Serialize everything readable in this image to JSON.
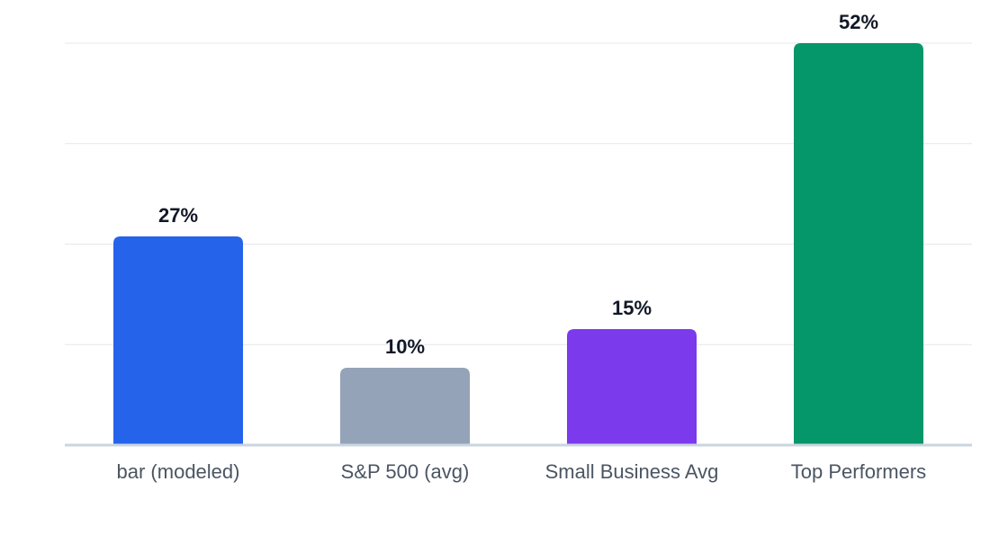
{
  "chart_data": {
    "type": "bar",
    "categories": [
      "bar (modeled)",
      "S&P 500 (avg)",
      "Small Business Avg",
      "Top Performers"
    ],
    "values": [
      27,
      10,
      15,
      52
    ],
    "value_labels": [
      "27%",
      "10%",
      "15%",
      "52%"
    ],
    "colors": [
      "#2563eb",
      "#94a3b8",
      "#7c3aed",
      "#059669"
    ],
    "unit": "%",
    "ylim": [
      0,
      52
    ],
    "grid": true,
    "legend": "none",
    "title": "",
    "xlabel": "",
    "ylabel": ""
  }
}
